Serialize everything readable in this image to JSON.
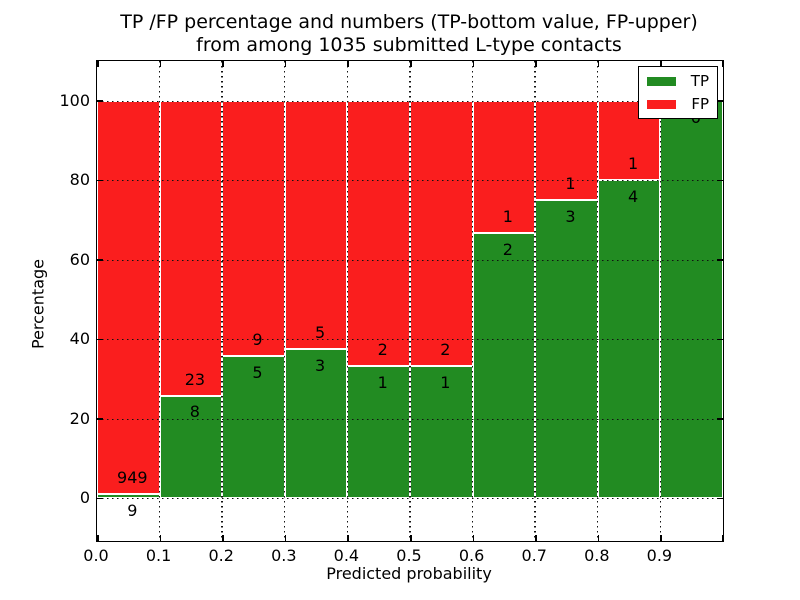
{
  "figure": {
    "title_lines": [
      "TP /FP percentage and numbers (TP-bottom value, FP-upper)",
      "from among 1035 submitted L-type contacts"
    ]
  },
  "legend": {
    "entries": [
      {
        "label": "TP",
        "color": "#228b22"
      },
      {
        "label": "FP",
        "color": "#fa1e1e"
      }
    ]
  },
  "chart_data": {
    "type": "bar",
    "stacked": true,
    "title": "TP /FP percentage and numbers (TP-bottom value, FP-upper)\nfrom among 1035 submitted L-type contacts",
    "xlabel": "Predicted probability",
    "ylabel": "Percentage",
    "total_contacts": 1035,
    "xlim": [
      0.0,
      1.0
    ],
    "ylim": [
      -10.8,
      110
    ],
    "x_ticks": [
      "0.0",
      "0.1",
      "0.2",
      "0.3",
      "0.4",
      "0.5",
      "0.6",
      "0.7",
      "0.8",
      "0.9"
    ],
    "y_ticks": [
      "0",
      "20",
      "40",
      "60",
      "80",
      "100"
    ],
    "grid": true,
    "legend_position": "upper right",
    "colors": {
      "tp": "#228b22",
      "fp": "#fa1e1e",
      "grid": "#111111",
      "frame": "#000000",
      "background": "#ffffff"
    },
    "bins": [
      {
        "range": [
          0.0,
          0.1
        ],
        "tp": 9,
        "fp": 949,
        "tp_pct": 0.94
      },
      {
        "range": [
          0.1,
          0.2
        ],
        "tp": 8,
        "fp": 23,
        "tp_pct": 25.81
      },
      {
        "range": [
          0.2,
          0.3
        ],
        "tp": 5,
        "fp": 9,
        "tp_pct": 35.71
      },
      {
        "range": [
          0.3,
          0.4
        ],
        "tp": 3,
        "fp": 5,
        "tp_pct": 37.5
      },
      {
        "range": [
          0.4,
          0.5
        ],
        "tp": 1,
        "fp": 2,
        "tp_pct": 33.33
      },
      {
        "range": [
          0.5,
          0.6
        ],
        "tp": 1,
        "fp": 2,
        "tp_pct": 33.33
      },
      {
        "range": [
          0.6,
          0.7
        ],
        "tp": 2,
        "fp": 1,
        "tp_pct": 66.67
      },
      {
        "range": [
          0.7,
          0.8
        ],
        "tp": 3,
        "fp": 1,
        "tp_pct": 75.0
      },
      {
        "range": [
          0.8,
          0.9
        ],
        "tp": 4,
        "fp": 1,
        "tp_pct": 80.0
      },
      {
        "range": [
          0.9,
          1.0
        ],
        "tp": 6,
        "fp": 0,
        "tp_pct": 100.0
      }
    ],
    "series": [
      {
        "name": "TP",
        "values": [
          0.94,
          25.81,
          35.71,
          37.5,
          33.33,
          33.33,
          66.67,
          75.0,
          80.0,
          100.0
        ]
      },
      {
        "name": "FP",
        "values": [
          99.06,
          74.19,
          64.29,
          62.5,
          66.67,
          66.67,
          33.33,
          25.0,
          20.0,
          0.0
        ]
      }
    ]
  }
}
